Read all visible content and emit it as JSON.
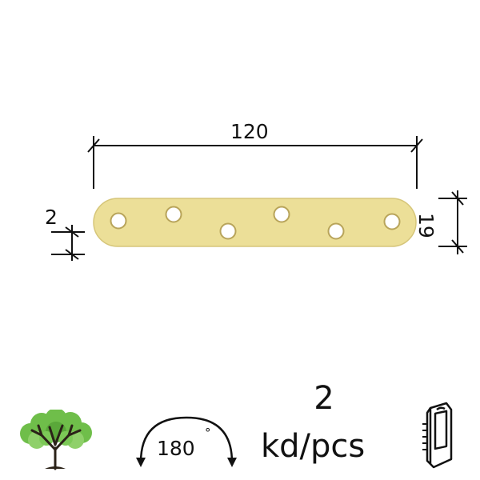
{
  "dimensions": {
    "length": "120",
    "thickness": "2",
    "width": "19"
  },
  "angle": {
    "value": "180",
    "degree_mark": "°"
  },
  "quantity": {
    "count": "2",
    "unit": "kd/pcs"
  },
  "icons": [
    "tree-icon",
    "angle-arc-icon",
    "blister-pack-icon"
  ],
  "colors": {
    "plate": "#ecdf98",
    "plate_edge": "#cfbf6f",
    "hole": "#ffffff",
    "tree_leaves": "#6fbe4a",
    "line": "#111111"
  }
}
